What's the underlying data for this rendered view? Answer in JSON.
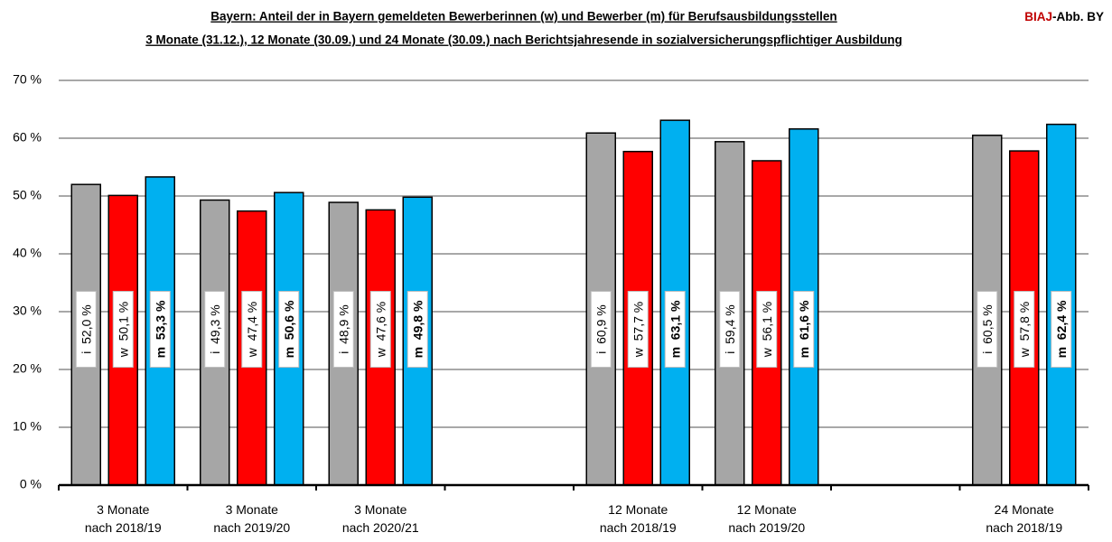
{
  "chart_data": {
    "type": "bar",
    "title": "Bayern: Anteil der in Bayern gemeldeten Bewerberinnen (w) und Bewerber (m) für Berufsausbildungsstellen",
    "subtitle": "3 Monate (31.12.), 12 Monate (30.09.) und 24 Monate (30.09.) nach Berichtsjahresende in sozialversicherungspflichtiger Ausbildung",
    "annotation": [
      "BIAJ",
      "-Abb. BY"
    ],
    "categories": [
      [
        "3 Monate",
        "nach 2018/19"
      ],
      [
        "3 Monate",
        "nach 2019/20"
      ],
      [
        "3 Monate",
        "nach 2020/21"
      ],
      null,
      [
        "12 Monate",
        "nach 2018/19"
      ],
      [
        "12 Monate",
        "nach 2019/20"
      ],
      null,
      [
        "24 Monate",
        "nach 2018/19"
      ]
    ],
    "series": [
      {
        "name": "i",
        "color": "#a6a6a6",
        "values": [
          52.0,
          49.3,
          48.9,
          null,
          60.9,
          59.4,
          null,
          60.5
        ],
        "value_labels": [
          "52,0 %",
          "49,3 %",
          "48,9 %",
          null,
          "60,9 %",
          "59,4 %",
          null,
          "60,5 %"
        ]
      },
      {
        "name": "w",
        "color": "#ff0000",
        "values": [
          50.1,
          47.4,
          47.6,
          null,
          57.7,
          56.1,
          null,
          57.8
        ],
        "value_labels": [
          "50,1 %",
          "47,4 %",
          "47,6 %",
          null,
          "57,7 %",
          "56,1 %",
          null,
          "57,8 %"
        ]
      },
      {
        "name": "m",
        "color": "#00b0f0",
        "values": [
          53.3,
          50.6,
          49.8,
          null,
          63.1,
          61.6,
          null,
          62.4
        ],
        "value_labels": [
          "53,3 %",
          "50,6 %",
          "49,8 %",
          null,
          "63,1 %",
          "61,6 %",
          null,
          "62,4 %"
        ]
      }
    ],
    "ylim": [
      0,
      70
    ],
    "yticks": [
      {
        "value": 0,
        "label": "0 %"
      },
      {
        "value": 10,
        "label": "10 %"
      },
      {
        "value": 20,
        "label": "20 %"
      },
      {
        "value": 30,
        "label": "30 %"
      },
      {
        "value": 40,
        "label": "40 %"
      },
      {
        "value": 50,
        "label": "50 %"
      },
      {
        "value": 60,
        "label": "60 %"
      },
      {
        "value": 70,
        "label": "70 %"
      }
    ],
    "grid": true
  }
}
